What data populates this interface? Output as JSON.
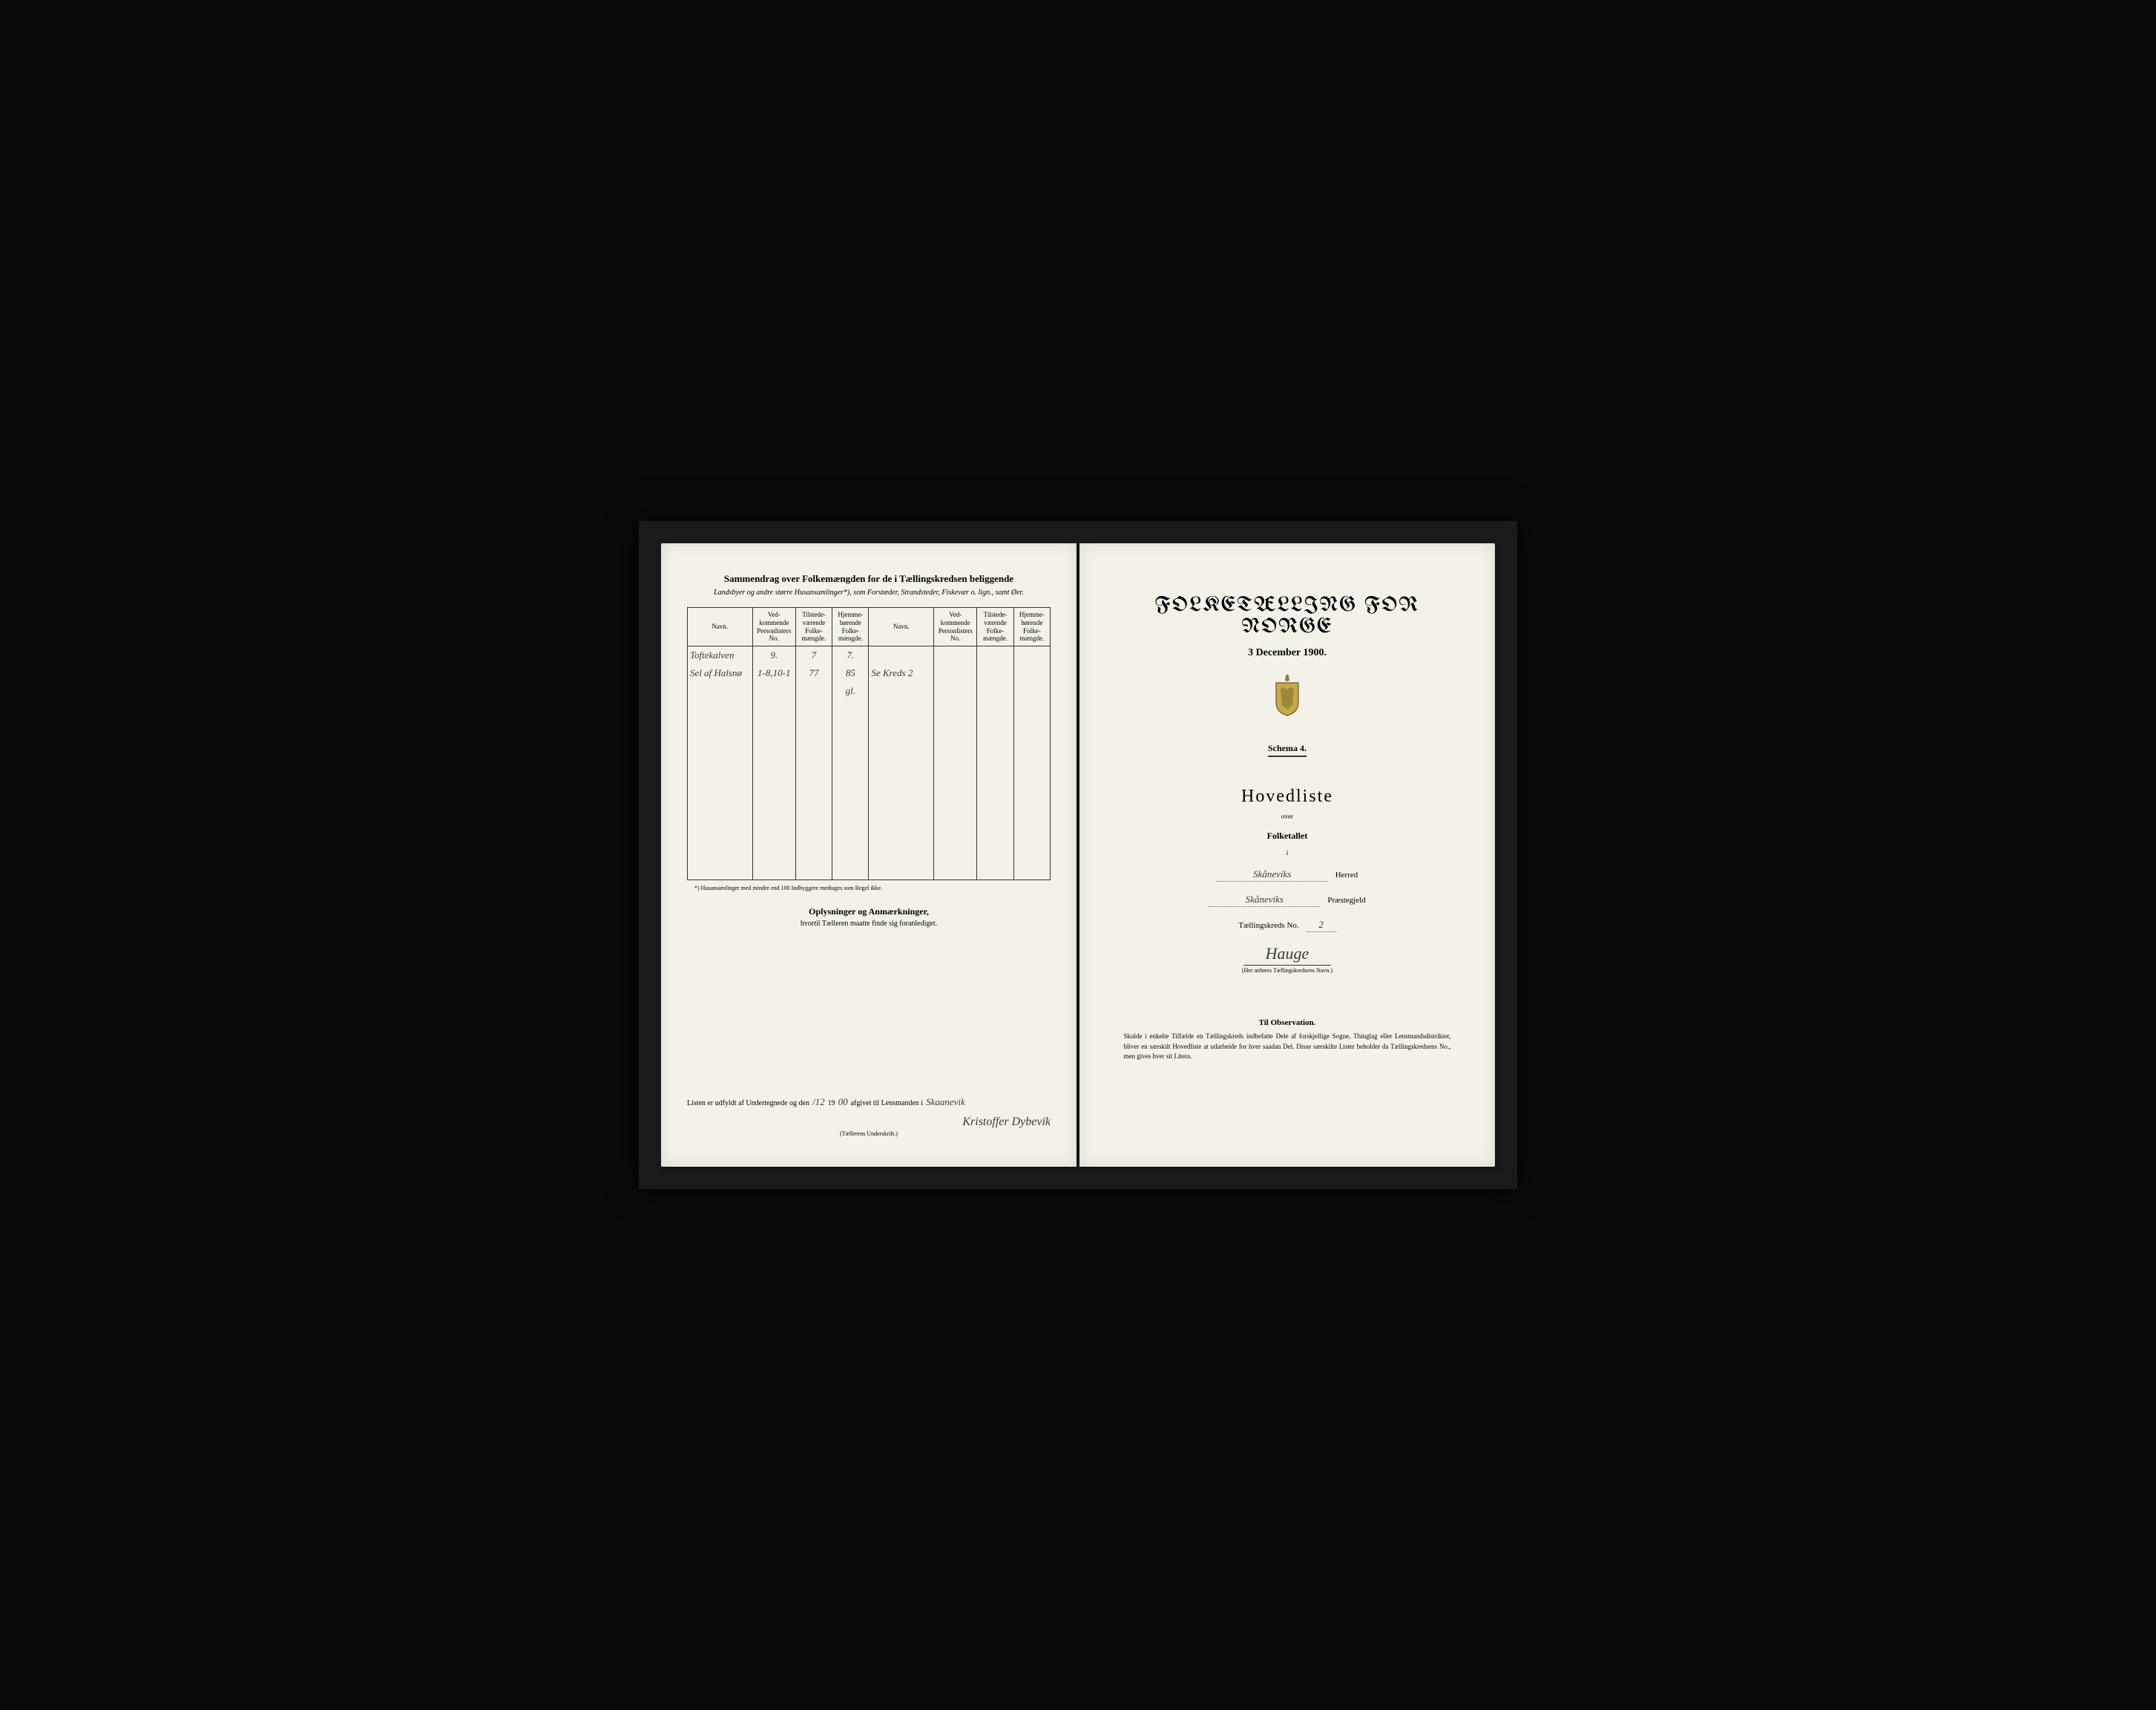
{
  "leftPage": {
    "title": "Sammendrag over Folkemængden for de i Tællingskredsen beliggende",
    "subtitle": "Landsbyer og andre større Husansamlinger*), som Forstæder, Strandsteder, Fiskevær o. lign., samt Øer.",
    "columns": {
      "navn1": "Navn.",
      "vedkom1": "Ved-kommende Personlisters No.",
      "tilstede1": "Tilstede-værende Folke-mængde.",
      "hjemme1": "Hjemme-hørende Folke-mængde.",
      "navn2": "Navn.",
      "vedkom2": "Ved-kommende Personlisters No.",
      "tilstede2": "Tilstede-værende Folke-mængde.",
      "hjemme2": "Hjemme-hørende Folke-mængde."
    },
    "rows": [
      {
        "navn": "Toftekalven",
        "no": "9.",
        "tilstede": "7",
        "hjemme": "7.",
        "navn2": "",
        "no2": "",
        "tilstede2": "",
        "hjemme2": ""
      },
      {
        "navn": "Sel af Halsnø",
        "no": "1-8,10-1",
        "tilstede": "77",
        "hjemme": "85",
        "navn2": "Se Kreds 2",
        "no2": "",
        "tilstede2": "",
        "hjemme2": ""
      },
      {
        "navn": "",
        "no": "",
        "tilstede": "",
        "hjemme": "gl.",
        "navn2": "",
        "no2": "",
        "tilstede2": "",
        "hjemme2": ""
      }
    ],
    "footnote": "*) Husansamlinger med mindre end 100 Indbyggere medtages som Regel ikke.",
    "remarksTitle": "Oplysninger og Anmærkninger,",
    "remarksSub": "hvortil Tælleren maatte finde sig foranlediget.",
    "signature": {
      "prefix": "Listen er udfyldt af Undertegnede og den",
      "day": "",
      "month": "/12",
      "yearPrefix": "19",
      "yearSuffix": "00",
      "middle": "afgivet til Lensmanden i",
      "place": "Skaanevik",
      "name": "Kristoffer Dybevik",
      "caption": "(Tællerens Underskrift.)"
    }
  },
  "rightPage": {
    "mainTitle": "FOLKETÆLLING FOR NORGE",
    "date": "3 December 1900.",
    "schema": "Schema 4.",
    "hovedliste": "Hovedliste",
    "over": "over",
    "folketallet": "Folketallet",
    "i": "i",
    "herred": "Skåneviks",
    "herredLabel": "Herred",
    "praestegjeld": "Skåneviks",
    "praestegjeldLabel": "Præstegjeld",
    "kredsLabel": "Tællingskreds No.",
    "kredsNo": "2",
    "kredsName": "Hauge",
    "kredsCaption": "(Her anføres Tællingskredsens Navn.)",
    "obsTitle": "Til Observation.",
    "obsText": "Skulde i enkelte Tilfælde en Tællingskreds indbefatte Dele af forskjellige Sogne, Thinglag eller Lensmandsdistrikter, bliver en særskilt Hovedliste at udarbeide for hver saadan Del. Disse særskilte Lister beholder da Tællingskredsens No., men gives hver sit Litera."
  },
  "colors": {
    "paper": "#f4f1e8",
    "ink": "#2a2a2a",
    "handwriting": "#3a3a3a",
    "background": "#0a0a0a"
  }
}
